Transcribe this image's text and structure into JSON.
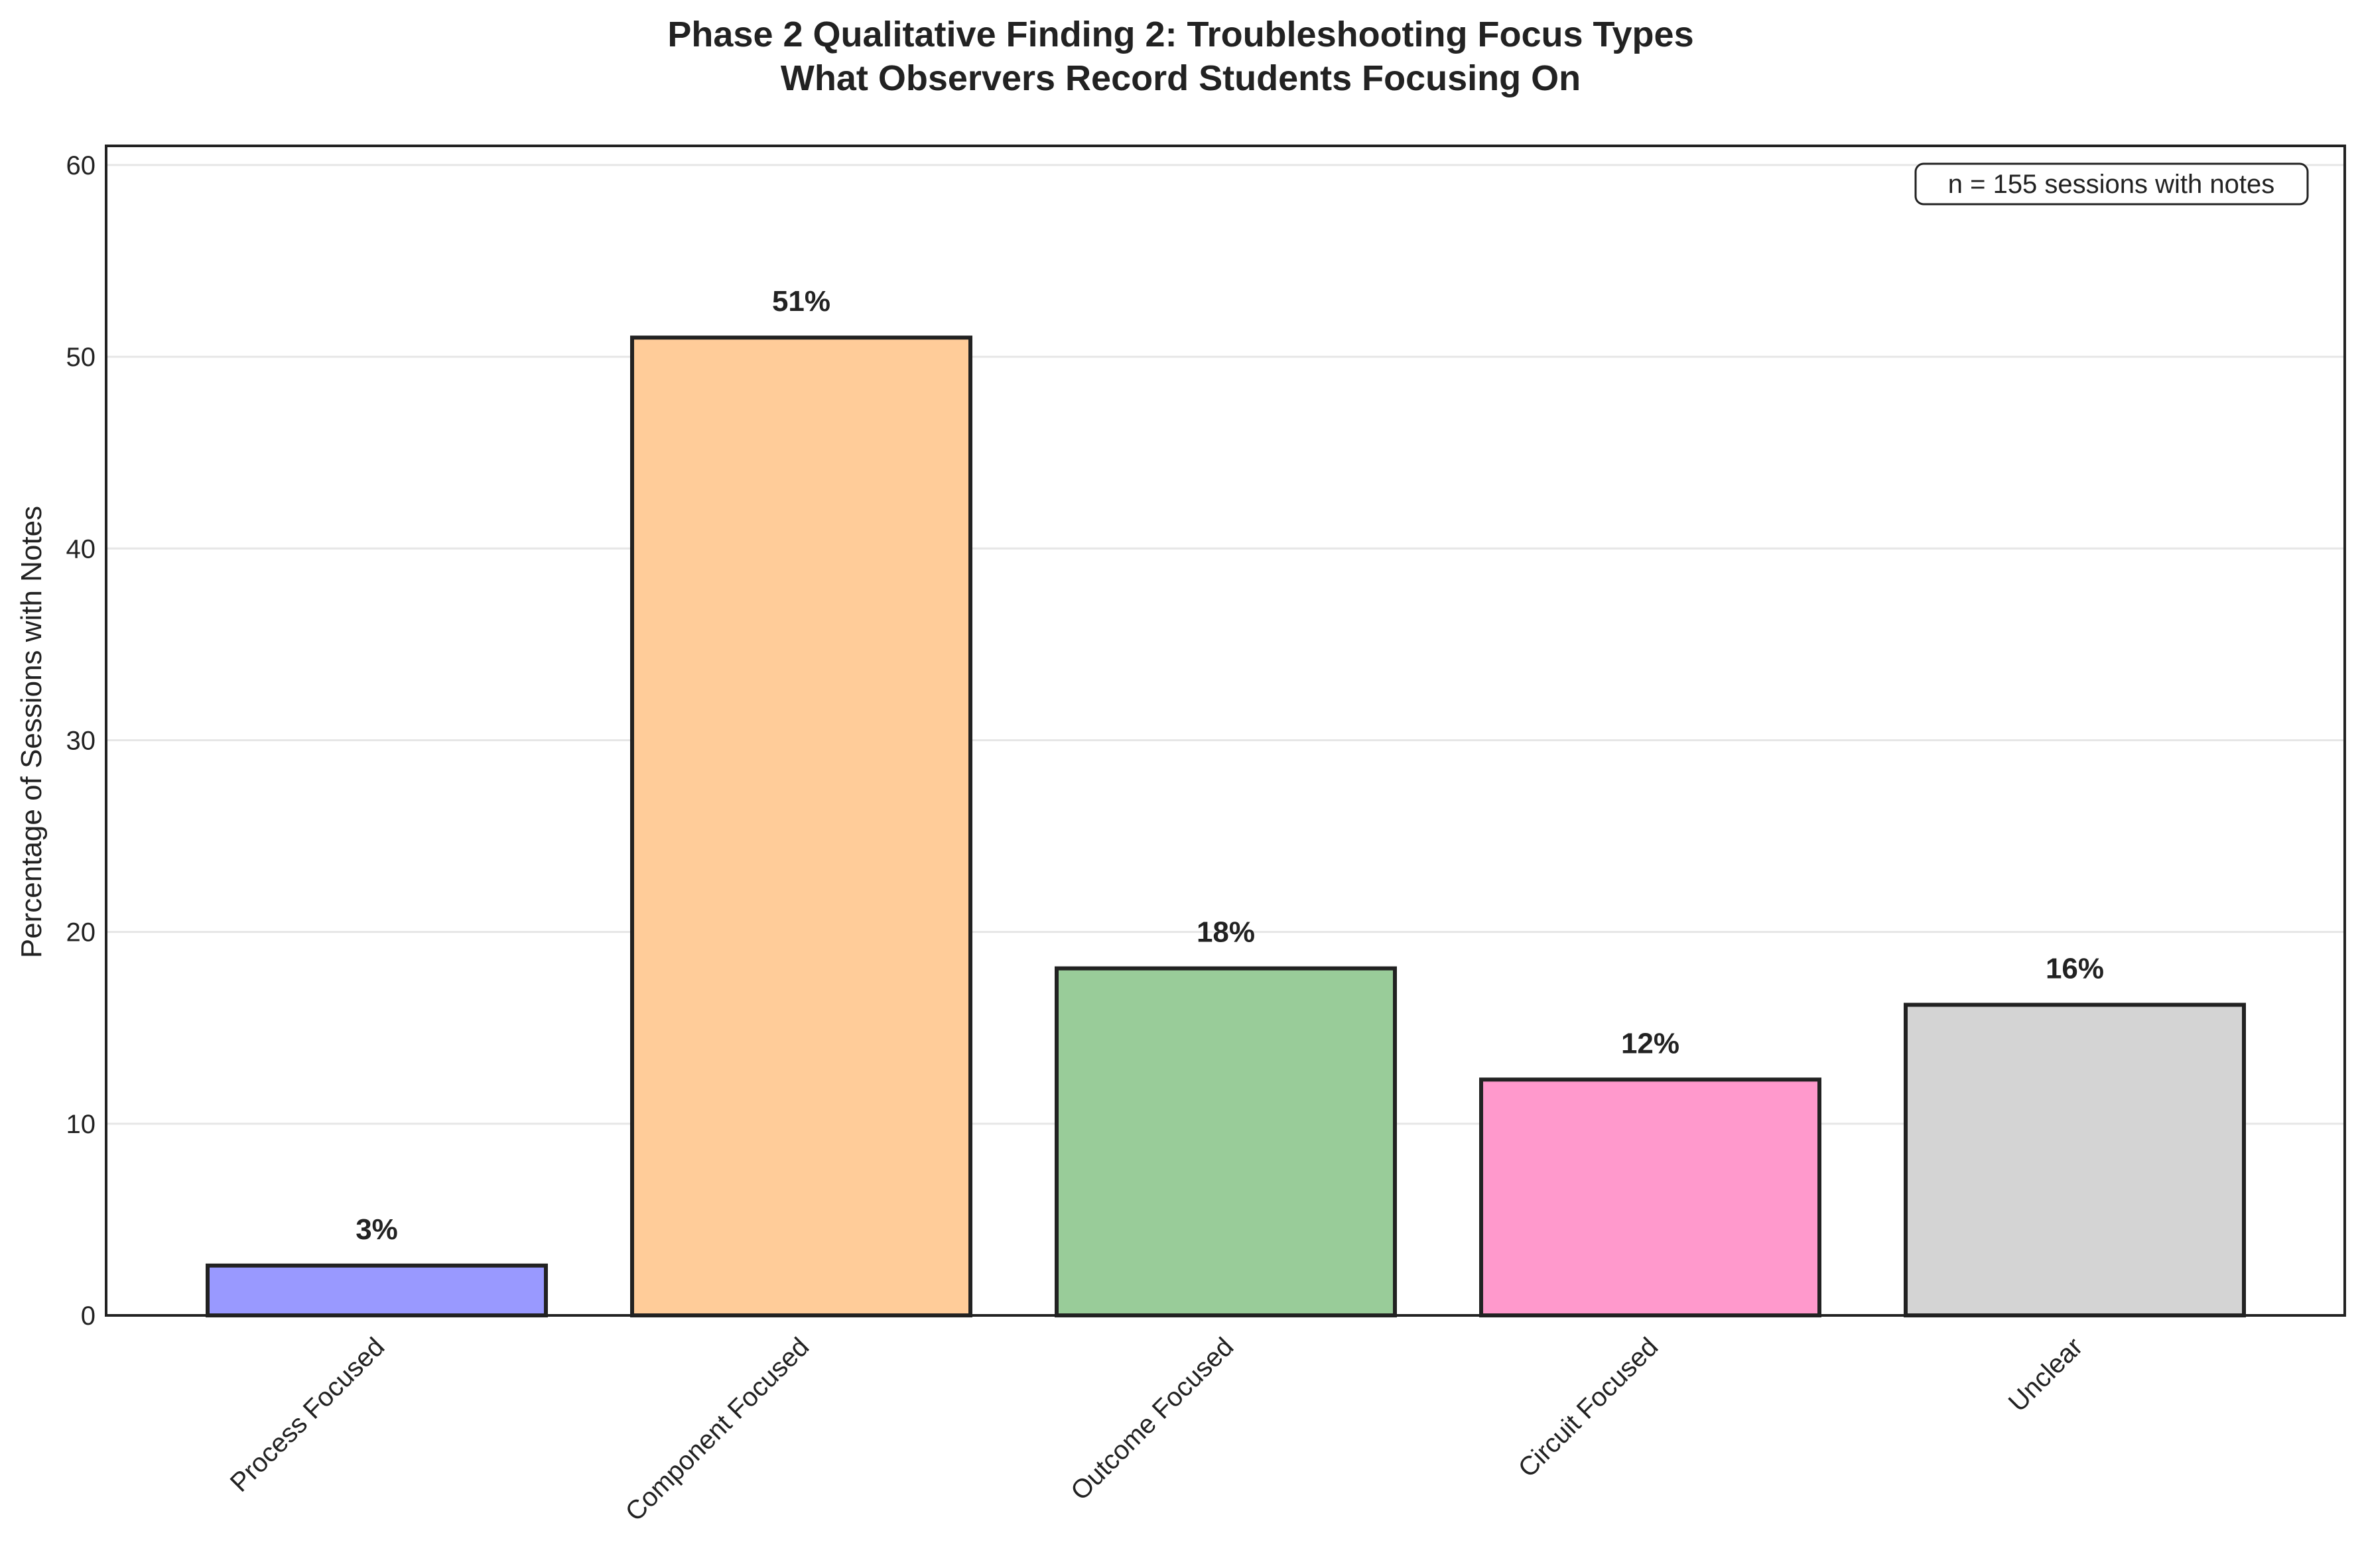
{
  "chart_data": {
    "type": "bar",
    "title": "Phase 2 Qualitative Finding 2: Troubleshooting Focus Types",
    "subtitle": "What Observers Record Students Focusing On",
    "xlabel": "",
    "ylabel": "Percentage of Sessions with Notes",
    "categories": [
      "Process Focused",
      "Component Focused",
      "Outcome Focused",
      "Circuit Focused",
      "Unclear"
    ],
    "values": [
      2.6,
      51.0,
      18.1,
      12.3,
      16.2
    ],
    "data_labels": [
      "3%",
      "51%",
      "18%",
      "12%",
      "16%"
    ],
    "colors": [
      "#9999ff",
      "#ffcc99",
      "#99cc99",
      "#ff99cc",
      "#d4d4d4"
    ],
    "ylim": [
      0,
      61
    ],
    "yticks": [
      0,
      10,
      20,
      30,
      40,
      50,
      60
    ],
    "grid": "y",
    "annotation": "n = 155 sessions with notes",
    "annotation_position": "top-right"
  }
}
